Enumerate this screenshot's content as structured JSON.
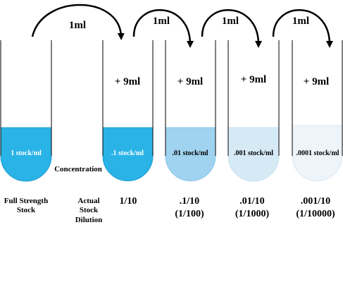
{
  "arrows": [
    {
      "label": "1ml",
      "from_tube": 0,
      "to_tube": 1
    },
    {
      "label": "1ml",
      "from_tube": 1,
      "to_tube": 2
    },
    {
      "label": "1ml",
      "from_tube": 2,
      "to_tube": 3
    },
    {
      "label": "1ml",
      "from_tube": 3,
      "to_tube": 4
    }
  ],
  "tubes": [
    {
      "liquid_label": "1 stock/ml",
      "added": "",
      "fill_color": "#2AB3E6",
      "stroke_color": "#1E9BD0",
      "text_color": "#ffffff"
    },
    {
      "liquid_label": ".1 stock/ml",
      "added": "+ 9ml",
      "fill_color": "#2AB3E6",
      "stroke_color": "#1E9BD0",
      "text_color": "#ffffff"
    },
    {
      "liquid_label": ".01 stock/ml",
      "added": "+ 9ml",
      "fill_color": "#9FD3F0",
      "stroke_color": "#86C5EA",
      "text_color": "#000000"
    },
    {
      "liquid_label": ".001 stock/ml",
      "added": "+ 9ml",
      "fill_color": "#D6EAF6",
      "stroke_color": "#C3DFF1",
      "text_color": "#000000"
    },
    {
      "liquid_label": ".0001 stock/ml",
      "added": "+ 9ml",
      "fill_color": "#EDF4FA",
      "stroke_color": "#DCE9F4",
      "text_color": "#000000"
    }
  ],
  "concentration_label": "Concentration",
  "row_labels": {
    "full_strength": [
      "Full Strength",
      "Stock"
    ],
    "actual_dilution": [
      "Actual",
      "Stock",
      "Dilution"
    ]
  },
  "dilutions": [
    {
      "line1": "1/10",
      "line2": ""
    },
    {
      "line1": ".1/10",
      "line2": "(1/100)"
    },
    {
      "line1": ".01/10",
      "line2": "(1/1000)"
    },
    {
      "line1": ".001/10",
      "line2": "(1/10000)"
    }
  ]
}
